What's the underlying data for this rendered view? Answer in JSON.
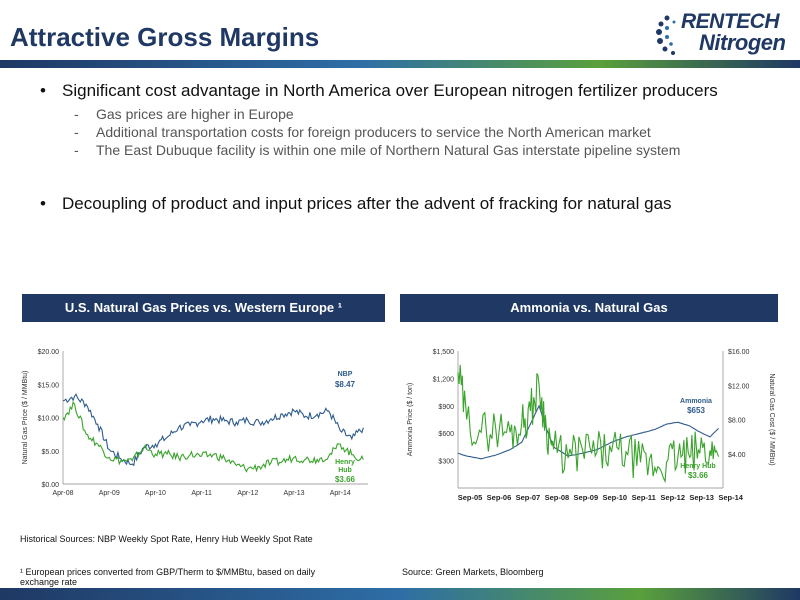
{
  "title": "Attractive Gross Margins",
  "logo": {
    "line1": "RENTECH",
    "line2": "Nitrogen"
  },
  "bullets": [
    {
      "text": "Significant cost advantage in North America over European nitrogen fertilizer producers",
      "subs": [
        "Gas prices are higher in Europe",
        "Additional transportation costs for foreign producers to service the North American market",
        "The East Dubuque facility is within one mile of Northern Natural Gas interstate pipeline system"
      ]
    },
    {
      "text": "Decoupling of product and input prices after the advent of fracking for natural gas",
      "subs": []
    }
  ],
  "chart_data": [
    {
      "type": "line",
      "title": "U.S. Natural Gas Prices vs. Western Europe ¹",
      "ylabel": "Natural Gas Price ($ / MMBtu)",
      "ylim": [
        0,
        20
      ],
      "yticks": [
        "$0.00",
        "$5.00",
        "$10.00",
        "$15.00",
        "$20.00"
      ],
      "xticks": [
        "Apr-08",
        "Apr-09",
        "Apr-10",
        "Apr-11",
        "Apr-12",
        "Apr-13",
        "Apr-14"
      ],
      "x": [
        2008.25,
        2008.5,
        2008.75,
        2009.0,
        2009.25,
        2009.5,
        2009.75,
        2010.0,
        2010.25,
        2010.5,
        2010.75,
        2011.0,
        2011.25,
        2011.5,
        2011.75,
        2012.0,
        2012.25,
        2012.5,
        2012.75,
        2013.0,
        2013.25,
        2013.5,
        2013.75,
        2014.0,
        2014.25,
        2014.5,
        2014.75
      ],
      "series": [
        {
          "name": "NBP",
          "color": "#2e5b8c",
          "end_label": "$8.47",
          "values": [
            12.5,
            13.2,
            12.0,
            9.0,
            5.2,
            3.8,
            3.0,
            5.5,
            6.0,
            7.0,
            8.5,
            8.8,
            9.5,
            9.8,
            9.5,
            9.3,
            9.6,
            9.2,
            9.8,
            10.5,
            11.0,
            10.2,
            10.5,
            11.0,
            8.0,
            6.8,
            8.47
          ]
        },
        {
          "name": "Henry Hub",
          "color": "#3aa32b",
          "end_label": "$3.66",
          "values": [
            10.0,
            12.0,
            7.5,
            6.0,
            4.0,
            3.5,
            3.5,
            5.5,
            4.5,
            4.5,
            4.0,
            4.4,
            4.2,
            4.4,
            3.8,
            2.8,
            2.3,
            2.6,
            3.2,
            3.4,
            4.0,
            3.7,
            3.7,
            4.2,
            6.0,
            4.4,
            3.66
          ]
        }
      ]
    },
    {
      "type": "line",
      "title": "Ammonia vs. Natural Gas",
      "ylabel": "Ammonia Price ($ / ton)",
      "y2label": "Natural Gas Cost ($ / MMBtu)",
      "ylim": [
        0,
        1500
      ],
      "y2lim": [
        0,
        16
      ],
      "yticks": [
        "$300",
        "$600",
        "$900",
        "$1,200",
        "$1,500"
      ],
      "y2ticks": [
        "$4.00",
        "$8.00",
        "$12.00",
        "$16.00"
      ],
      "xticks": [
        "Sep-05",
        "Sep-06",
        "Sep-07",
        "Sep-08",
        "Sep-09",
        "Sep-10",
        "Sep-11",
        "Sep-12",
        "Sep-13",
        "Sep-14"
      ],
      "x": [
        2005.7,
        2006.0,
        2006.5,
        2007.0,
        2007.5,
        2007.9,
        2008.2,
        2008.5,
        2008.75,
        2009.0,
        2009.5,
        2010.0,
        2010.5,
        2011.0,
        2011.5,
        2012.0,
        2012.5,
        2012.9,
        2013.3,
        2013.7,
        2014.0,
        2014.4,
        2014.7
      ],
      "series": [
        {
          "name": "Ammonia",
          "axis": "left",
          "color": "#2e5b8c",
          "end_label": "$653",
          "values": [
            380,
            350,
            320,
            360,
            420,
            500,
            700,
            900,
            650,
            450,
            350,
            380,
            420,
            500,
            560,
            600,
            640,
            700,
            720,
            680,
            620,
            560,
            653
          ]
        },
        {
          "name": "Henry Hub",
          "axis": "right",
          "color": "#3aa32b",
          "end_label": "$3.66",
          "values": [
            13.5,
            8.0,
            6.5,
            7.0,
            6.5,
            7.5,
            9.0,
            12.0,
            7.0,
            4.5,
            3.5,
            4.5,
            4.2,
            4.2,
            4.2,
            3.0,
            2.4,
            3.0,
            3.8,
            3.6,
            4.5,
            4.4,
            3.66
          ]
        }
      ]
    }
  ],
  "notes": {
    "historical": "Historical Sources: NBP Weekly Spot Rate, Henry Hub Weekly Spot Rate",
    "footnote": "¹ European prices converted from GBP/Therm to $/MMBtu, based on daily exchange rate",
    "source": "Source:  Green Markets, Bloomberg"
  }
}
